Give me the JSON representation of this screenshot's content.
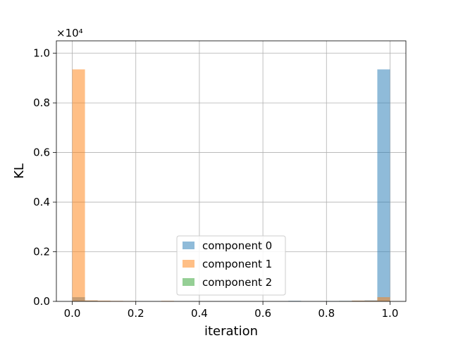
{
  "chart_data": {
    "type": "bar",
    "subtype": "histogram",
    "xlabel": "iteration",
    "ylabel": "KL",
    "y_scale_label": "×10⁴",
    "xlim": [
      -0.05,
      1.05
    ],
    "ylim": [
      0,
      1.05
    ],
    "y_multiplier": 10000,
    "x_ticks": [
      "0.0",
      "0.2",
      "0.4",
      "0.6",
      "0.8",
      "1.0"
    ],
    "y_ticks": [
      "0.0",
      "0.2",
      "0.4",
      "0.6",
      "0.8",
      "1.0"
    ],
    "grid": true,
    "legend_position": "lower center",
    "bin_edges": [
      0.0,
      0.04,
      0.08,
      0.12,
      0.16,
      0.2,
      0.24,
      0.28,
      0.32,
      0.36,
      0.4,
      0.44,
      0.48,
      0.52,
      0.56,
      0.6,
      0.64,
      0.68,
      0.72,
      0.76,
      0.8,
      0.84,
      0.88,
      0.92,
      0.96,
      1.0
    ],
    "series": [
      {
        "name": "component 0",
        "color": "#1f77b4",
        "values": [
          0.017,
          0.003,
          0.001,
          0.0,
          0.0,
          0.0,
          0.0,
          0.0,
          0.0,
          0.0,
          0.0,
          0.0,
          0.0,
          0.0,
          0.0,
          0.0,
          0.0,
          0.002,
          0.0,
          0.0,
          0.001,
          0.002,
          0.003,
          0.004,
          0.935
        ]
      },
      {
        "name": "component 1",
        "color": "#ff7f0e",
        "values": [
          0.935,
          0.004,
          0.003,
          0.002,
          0.001,
          0.0,
          0.0,
          0.002,
          0.0,
          0.0,
          0.0,
          0.0,
          0.0,
          0.0,
          0.0,
          0.0,
          0.0,
          0.0,
          0.0,
          0.0,
          0.0,
          0.001,
          0.003,
          0.003,
          0.017
        ]
      },
      {
        "name": "component 2",
        "color": "#2ca02c",
        "values": [
          0.0,
          0.0,
          0.0,
          0.0,
          0.0,
          0.0,
          0.0,
          0.0,
          0.0,
          0.0,
          0.0,
          0.0,
          0.0,
          0.0,
          0.0,
          0.0,
          0.0,
          0.0,
          0.0,
          0.0,
          0.0,
          0.0,
          0.0,
          0.0,
          0.0
        ]
      }
    ]
  }
}
